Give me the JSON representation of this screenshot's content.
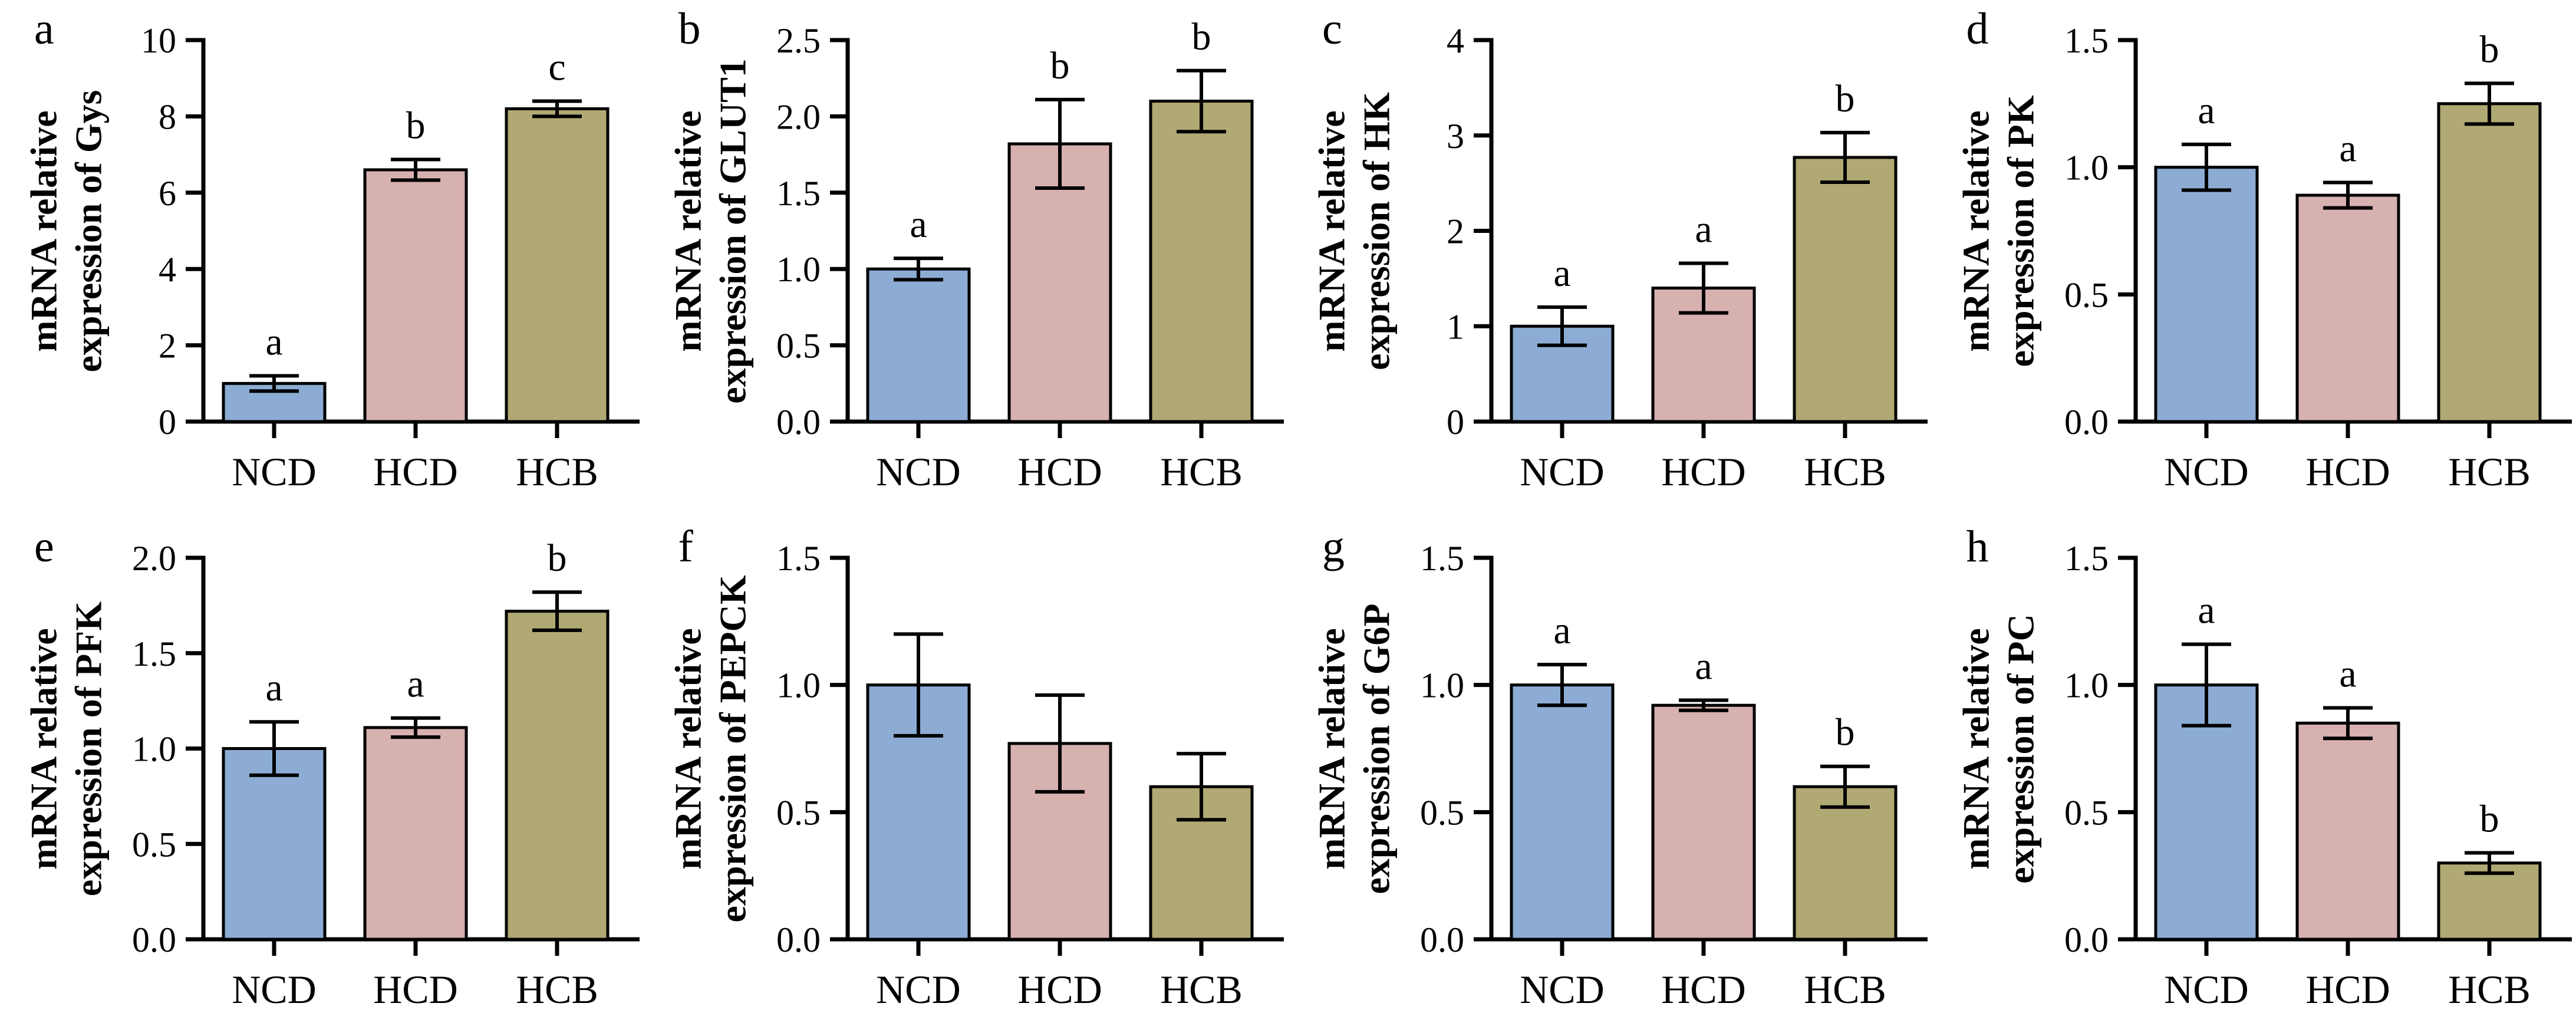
{
  "colors": {
    "NCD": "#8cacd3",
    "HCD": "#d7b0b0",
    "HCB": "#b1a974",
    "axis": "#000000"
  },
  "chart_data": [
    {
      "type": "bar",
      "panel_label": "a",
      "ylabel": "mRNA relative expression of Gys",
      "ylabel_line1": "mRNA relative",
      "ylabel_line2": "expression of Gys",
      "xlabel": "",
      "categories": [
        "NCD",
        "HCD",
        "HCB"
      ],
      "values": [
        1.0,
        6.6,
        8.2
      ],
      "errors": [
        0.2,
        0.27,
        0.2
      ],
      "sig_letters": [
        "a",
        "b",
        "c"
      ],
      "ylim": [
        0,
        10
      ],
      "yticks": [
        0,
        2,
        4,
        6,
        8,
        10
      ],
      "ytick_labels": [
        "0",
        "2",
        "4",
        "6",
        "8",
        "10"
      ]
    },
    {
      "type": "bar",
      "panel_label": "b",
      "ylabel": "mRNA relative expression of GLUT1",
      "ylabel_line1": "mRNA relative",
      "ylabel_line2": "expression of GLUT1",
      "xlabel": "",
      "categories": [
        "NCD",
        "HCD",
        "HCB"
      ],
      "values": [
        1.0,
        1.82,
        2.1
      ],
      "errors": [
        0.07,
        0.29,
        0.2
      ],
      "sig_letters": [
        "a",
        "b",
        "b"
      ],
      "ylim": [
        0,
        2.5
      ],
      "yticks": [
        0,
        0.5,
        1.0,
        1.5,
        2.0,
        2.5
      ],
      "ytick_labels": [
        "0.0",
        "0.5",
        "1.0",
        "1.5",
        "2.0",
        "2.5"
      ]
    },
    {
      "type": "bar",
      "panel_label": "c",
      "ylabel": "mRNA relative expression of HK",
      "ylabel_line1": "mRNA relative",
      "ylabel_line2": "expression of HK",
      "xlabel": "",
      "categories": [
        "NCD",
        "HCD",
        "HCB"
      ],
      "values": [
        1.0,
        1.4,
        2.77
      ],
      "errors": [
        0.2,
        0.26,
        0.26
      ],
      "sig_letters": [
        "a",
        "a",
        "b"
      ],
      "ylim": [
        0,
        4
      ],
      "yticks": [
        0,
        1,
        2,
        3,
        4
      ],
      "ytick_labels": [
        "0",
        "1",
        "2",
        "3",
        "4"
      ]
    },
    {
      "type": "bar",
      "panel_label": "d",
      "ylabel": "mRNA relative expression of PK",
      "ylabel_line1": "mRNA relative",
      "ylabel_line2": "expression of PK",
      "xlabel": "",
      "categories": [
        "NCD",
        "HCD",
        "HCB"
      ],
      "values": [
        1.0,
        0.89,
        1.25
      ],
      "errors": [
        0.09,
        0.05,
        0.08
      ],
      "sig_letters": [
        "a",
        "a",
        "b"
      ],
      "ylim": [
        0,
        1.5
      ],
      "yticks": [
        0,
        0.5,
        1.0,
        1.5
      ],
      "ytick_labels": [
        "0.0",
        "0.5",
        "1.0",
        "1.5"
      ]
    },
    {
      "type": "bar",
      "panel_label": "e",
      "ylabel": "mRNA relative expression of PFK",
      "ylabel_line1": "mRNA relative",
      "ylabel_line2": "expression of PFK",
      "xlabel": "",
      "categories": [
        "NCD",
        "HCD",
        "HCB"
      ],
      "values": [
        1.0,
        1.11,
        1.72
      ],
      "errors": [
        0.14,
        0.05,
        0.1
      ],
      "sig_letters": [
        "a",
        "a",
        "b"
      ],
      "ylim": [
        0,
        2.0
      ],
      "yticks": [
        0,
        0.5,
        1.0,
        1.5,
        2.0
      ],
      "ytick_labels": [
        "0.0",
        "0.5",
        "1.0",
        "1.5",
        "2.0"
      ]
    },
    {
      "type": "bar",
      "panel_label": "f",
      "ylabel": "mRNA relative expression of PEPCK",
      "ylabel_line1": "mRNA relative",
      "ylabel_line2": "expression of PEPCK",
      "xlabel": "",
      "categories": [
        "NCD",
        "HCD",
        "HCB"
      ],
      "values": [
        1.0,
        0.77,
        0.6
      ],
      "errors": [
        0.2,
        0.19,
        0.13
      ],
      "sig_letters": [
        "",
        "",
        ""
      ],
      "ylim": [
        0,
        1.5
      ],
      "yticks": [
        0,
        0.5,
        1.0,
        1.5
      ],
      "ytick_labels": [
        "0.0",
        "0.5",
        "1.0",
        "1.5"
      ]
    },
    {
      "type": "bar",
      "panel_label": "g",
      "ylabel": "mRNA relative expression of G6P",
      "ylabel_line1": "mRNA relative",
      "ylabel_line2": "expression of G6P",
      "xlabel": "",
      "categories": [
        "NCD",
        "HCD",
        "HCB"
      ],
      "values": [
        1.0,
        0.92,
        0.6
      ],
      "errors": [
        0.08,
        0.02,
        0.08
      ],
      "sig_letters": [
        "a",
        "a",
        "b"
      ],
      "ylim": [
        0,
        1.5
      ],
      "yticks": [
        0,
        0.5,
        1.0,
        1.5
      ],
      "ytick_labels": [
        "0.0",
        "0.5",
        "1.0",
        "1.5"
      ]
    },
    {
      "type": "bar",
      "panel_label": "h",
      "ylabel": "mRNA relative expression of PC",
      "ylabel_line1": "mRNA relative",
      "ylabel_line2": "expression of PC",
      "xlabel": "",
      "categories": [
        "NCD",
        "HCD",
        "HCB"
      ],
      "values": [
        1.0,
        0.85,
        0.3
      ],
      "errors": [
        0.16,
        0.06,
        0.04
      ],
      "sig_letters": [
        "a",
        "a",
        "b"
      ],
      "ylim": [
        0,
        1.5
      ],
      "yticks": [
        0,
        0.5,
        1.0,
        1.5
      ],
      "ytick_labels": [
        "0.0",
        "0.5",
        "1.0",
        "1.5"
      ]
    }
  ]
}
